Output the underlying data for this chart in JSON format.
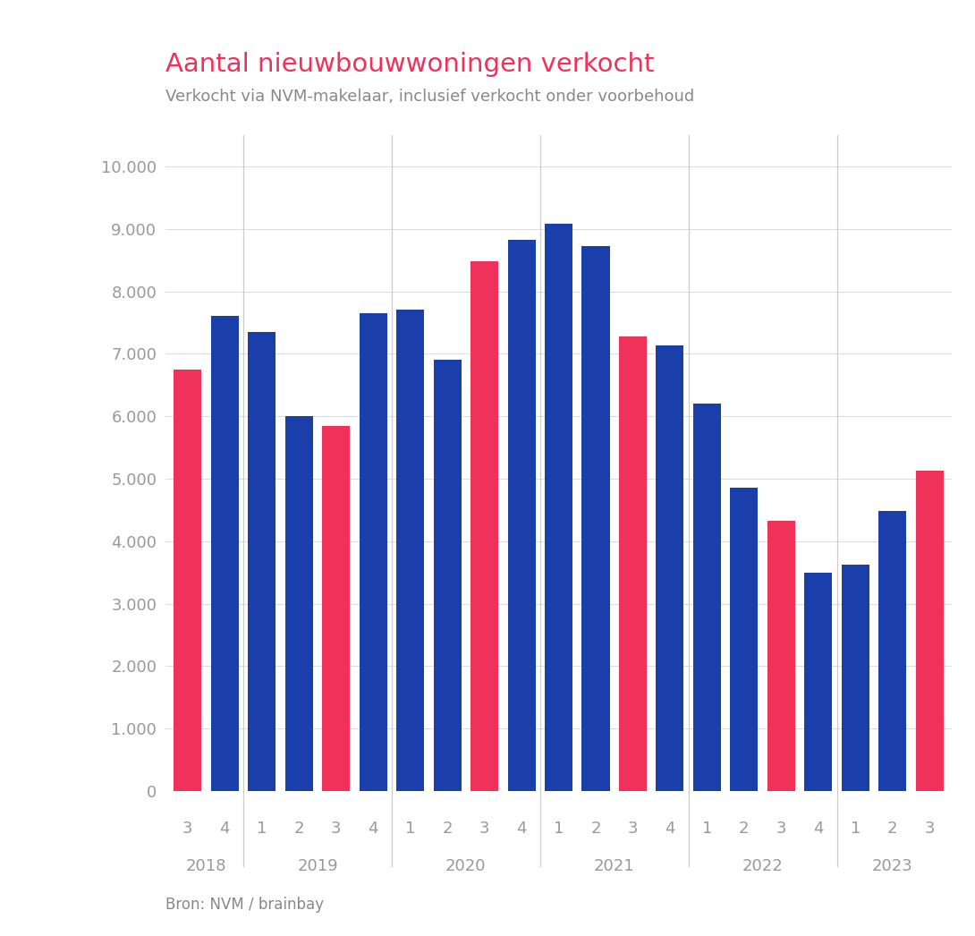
{
  "title": "Aantal nieuwbouwwoningen verkocht",
  "subtitle": "Verkocht via NVM-makelaar, inclusief verkocht onder voorbehoud",
  "source": "Bron: NVM / brainbay",
  "title_color": "#f0325a",
  "subtitle_color": "#888888",
  "source_color": "#888888",
  "background_color": "#ffffff",
  "bar_color_blue": "#1a3faa",
  "bar_color_pink": "#f0325a",
  "ylim": [
    0,
    10500
  ],
  "yticks": [
    0,
    1000,
    2000,
    3000,
    4000,
    5000,
    6000,
    7000,
    8000,
    9000,
    10000
  ],
  "ytick_labels": [
    "0",
    "1.000",
    "2.000",
    "3.000",
    "4.000",
    "5.000",
    "6.000",
    "7.000",
    "8.000",
    "9.000",
    "10.000"
  ],
  "bars": [
    {
      "label": "3",
      "year": "2018",
      "value": 6750,
      "color": "pink"
    },
    {
      "label": "4",
      "year": "2018",
      "value": 7600,
      "color": "blue"
    },
    {
      "label": "1",
      "year": "2019",
      "value": 7350,
      "color": "blue"
    },
    {
      "label": "2",
      "year": "2019",
      "value": 6000,
      "color": "blue"
    },
    {
      "label": "3",
      "year": "2019",
      "value": 5850,
      "color": "pink"
    },
    {
      "label": "4",
      "year": "2019",
      "value": 7650,
      "color": "blue"
    },
    {
      "label": "1",
      "year": "2020",
      "value": 7700,
      "color": "blue"
    },
    {
      "label": "2",
      "year": "2020",
      "value": 6900,
      "color": "blue"
    },
    {
      "label": "3",
      "year": "2020",
      "value": 8480,
      "color": "pink"
    },
    {
      "label": "4",
      "year": "2020",
      "value": 8820,
      "color": "blue"
    },
    {
      "label": "1",
      "year": "2021",
      "value": 9080,
      "color": "blue"
    },
    {
      "label": "2",
      "year": "2021",
      "value": 8720,
      "color": "blue"
    },
    {
      "label": "3",
      "year": "2021",
      "value": 7270,
      "color": "pink"
    },
    {
      "label": "4",
      "year": "2021",
      "value": 7130,
      "color": "blue"
    },
    {
      "label": "1",
      "year": "2022",
      "value": 6200,
      "color": "blue"
    },
    {
      "label": "2",
      "year": "2022",
      "value": 4850,
      "color": "blue"
    },
    {
      "label": "3",
      "year": "2022",
      "value": 4320,
      "color": "pink"
    },
    {
      "label": "4",
      "year": "2022",
      "value": 3490,
      "color": "blue"
    },
    {
      "label": "1",
      "year": "2023",
      "value": 3620,
      "color": "blue"
    },
    {
      "label": "2",
      "year": "2023",
      "value": 4480,
      "color": "blue"
    },
    {
      "label": "3",
      "year": "2023",
      "value": 5130,
      "color": "pink"
    }
  ],
  "year_groups": [
    {
      "year": "2018",
      "quarters": [
        "3",
        "4"
      ]
    },
    {
      "year": "2019",
      "quarters": [
        "1",
        "2",
        "3",
        "4"
      ]
    },
    {
      "year": "2020",
      "quarters": [
        "1",
        "2",
        "3",
        "4"
      ]
    },
    {
      "year": "2021",
      "quarters": [
        "1",
        "2",
        "3",
        "4"
      ]
    },
    {
      "year": "2022",
      "quarters": [
        "1",
        "2",
        "3",
        "4"
      ]
    },
    {
      "year": "2023",
      "quarters": [
        "1",
        "2",
        "3"
      ]
    }
  ]
}
